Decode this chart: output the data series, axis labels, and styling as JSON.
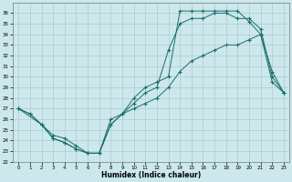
{
  "xlabel": "Humidex (Indice chaleur)",
  "bg_color": "#cce8ec",
  "grid_color": "#aacccc",
  "line_color": "#1a6e6a",
  "xlim": [
    -0.5,
    23.5
  ],
  "ylim": [
    22,
    37
  ],
  "yticks": [
    22,
    23,
    24,
    25,
    26,
    27,
    28,
    29,
    30,
    31,
    32,
    33,
    34,
    35,
    36
  ],
  "xticks": [
    0,
    1,
    2,
    3,
    4,
    5,
    6,
    7,
    8,
    9,
    10,
    11,
    12,
    13,
    14,
    15,
    16,
    17,
    18,
    19,
    20,
    21,
    22,
    23
  ],
  "line1_x": [
    0,
    1,
    2,
    3,
    4,
    5,
    6,
    7,
    8,
    9,
    10,
    11,
    12,
    13,
    14,
    15,
    16,
    17,
    18,
    19,
    20,
    21,
    22,
    23
  ],
  "line1_y": [
    27,
    26.5,
    25.5,
    24.5,
    24.2,
    23.5,
    22.8,
    22.8,
    25.5,
    26.5,
    28,
    29,
    29.5,
    30,
    36.2,
    36.2,
    36.2,
    36.2,
    36.2,
    36.2,
    35.2,
    34,
    30.5,
    28.5
  ],
  "line2_x": [
    0,
    1,
    2,
    3,
    4,
    5,
    6,
    7,
    8,
    9,
    10,
    11,
    12,
    13,
    14,
    15,
    16,
    17,
    18,
    19,
    20,
    21,
    22,
    23
  ],
  "line2_y": [
    27,
    26.5,
    25.5,
    24.2,
    23.8,
    23.2,
    22.8,
    22.8,
    25.5,
    26.5,
    27.5,
    28.5,
    29,
    32.5,
    35,
    35.5,
    35.5,
    36,
    36,
    35.5,
    35.5,
    34.5,
    30,
    28.5
  ],
  "line3_x": [
    0,
    2,
    3,
    4,
    5,
    6,
    7,
    8,
    9,
    10,
    11,
    12,
    13,
    14,
    15,
    16,
    17,
    18,
    19,
    20,
    21,
    22,
    23
  ],
  "line3_y": [
    27,
    25.5,
    24.2,
    23.8,
    23.2,
    22.8,
    22.8,
    26,
    26.5,
    27,
    27.5,
    28,
    29,
    30.5,
    31.5,
    32,
    32.5,
    33,
    33,
    33.5,
    34,
    29.5,
    28.5
  ]
}
